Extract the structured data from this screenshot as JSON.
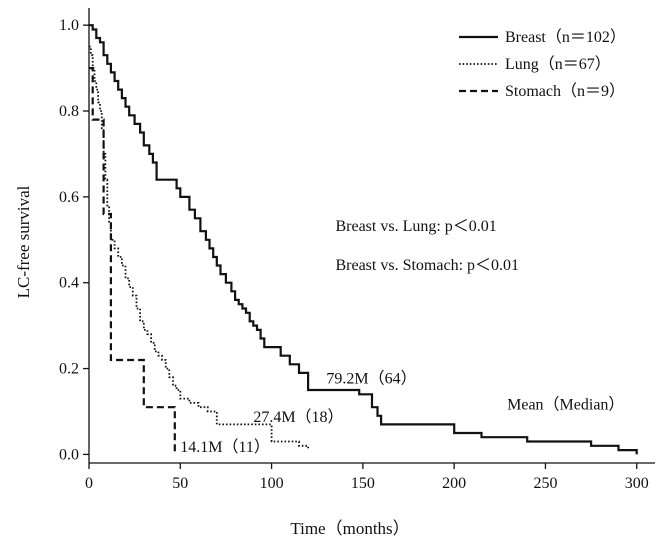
{
  "chart_data": {
    "type": "line",
    "title": "",
    "xlabel": "Time（months）",
    "ylabel": "LC-free survival",
    "xlim": [
      0,
      310
    ],
    "ylim": [
      -0.02,
      1.04
    ],
    "xticks": [
      0,
      50,
      100,
      150,
      200,
      250,
      300
    ],
    "yticks": [
      0.0,
      0.2,
      0.4,
      0.6,
      0.8,
      1.0
    ],
    "grid": false,
    "legend_position": "top-right",
    "series": [
      {
        "name": "Breast（n＝102）",
        "style": "solid",
        "color": "#111111",
        "x": [
          0,
          2,
          4,
          6,
          8,
          10,
          12,
          14,
          16,
          18,
          20,
          22,
          25,
          28,
          30,
          33,
          35,
          37,
          40,
          42,
          44,
          46,
          48,
          50,
          52,
          55,
          58,
          61,
          64,
          66,
          68,
          70,
          72,
          75,
          78,
          80,
          82,
          84,
          86,
          88,
          90,
          92,
          94,
          96,
          98,
          100,
          105,
          110,
          115,
          120,
          130,
          140,
          148,
          155,
          158,
          160,
          175,
          200,
          215,
          220,
          240,
          260,
          275,
          290,
          300
        ],
        "y": [
          1.0,
          0.99,
          0.97,
          0.96,
          0.93,
          0.91,
          0.89,
          0.87,
          0.85,
          0.83,
          0.81,
          0.79,
          0.77,
          0.75,
          0.72,
          0.7,
          0.68,
          0.64,
          0.64,
          0.64,
          0.64,
          0.64,
          0.62,
          0.6,
          0.6,
          0.57,
          0.55,
          0.52,
          0.5,
          0.48,
          0.46,
          0.44,
          0.42,
          0.4,
          0.38,
          0.36,
          0.35,
          0.34,
          0.33,
          0.31,
          0.3,
          0.29,
          0.27,
          0.25,
          0.25,
          0.25,
          0.23,
          0.21,
          0.19,
          0.15,
          0.15,
          0.15,
          0.14,
          0.11,
          0.09,
          0.07,
          0.07,
          0.05,
          0.04,
          0.04,
          0.03,
          0.03,
          0.02,
          0.01,
          0.0
        ]
      },
      {
        "name": "Lung（n＝67）",
        "style": "dotted",
        "color": "#111111",
        "x": [
          0,
          1,
          2,
          3,
          4,
          5,
          6,
          7,
          8,
          9,
          10,
          11,
          12,
          14,
          16,
          18,
          20,
          22,
          24,
          26,
          28,
          30,
          32,
          34,
          36,
          38,
          40,
          42,
          44,
          46,
          48,
          50,
          55,
          60,
          65,
          70,
          80,
          90,
          100,
          105,
          110,
          115,
          120
        ],
        "y": [
          0.95,
          0.93,
          0.9,
          0.87,
          0.85,
          0.82,
          0.8,
          0.76,
          0.7,
          0.64,
          0.58,
          0.54,
          0.5,
          0.48,
          0.46,
          0.44,
          0.41,
          0.39,
          0.37,
          0.34,
          0.31,
          0.29,
          0.28,
          0.26,
          0.24,
          0.23,
          0.22,
          0.2,
          0.18,
          0.16,
          0.15,
          0.13,
          0.12,
          0.11,
          0.1,
          0.07,
          0.07,
          0.07,
          0.03,
          0.03,
          0.03,
          0.02,
          0.01
        ]
      },
      {
        "name": "Stomach（n＝9）",
        "style": "dashed",
        "color": "#111111",
        "x": [
          0,
          2,
          4,
          6,
          8,
          10,
          12,
          14,
          20,
          28,
          30,
          32,
          40,
          46,
          47
        ],
        "y": [
          0.9,
          0.78,
          0.78,
          0.78,
          0.56,
          0.56,
          0.22,
          0.22,
          0.22,
          0.22,
          0.11,
          0.11,
          0.11,
          0.11,
          0.0
        ]
      }
    ],
    "annotations": [
      {
        "text": "Breast vs. Lung: p＜0.01",
        "x": 135,
        "y": 0.52
      },
      {
        "text": "Breast vs. Stomach: p＜0.01",
        "x": 135,
        "y": 0.43
      },
      {
        "text": "79.2M（64）",
        "x": 130,
        "y": 0.165
      },
      {
        "text": "27.4M（18）",
        "x": 90,
        "y": 0.075
      },
      {
        "text": "14.1M（11）",
        "x": 50,
        "y": 0.006
      },
      {
        "text": "Mean（Median）",
        "x": 229,
        "y": 0.105
      }
    ]
  }
}
